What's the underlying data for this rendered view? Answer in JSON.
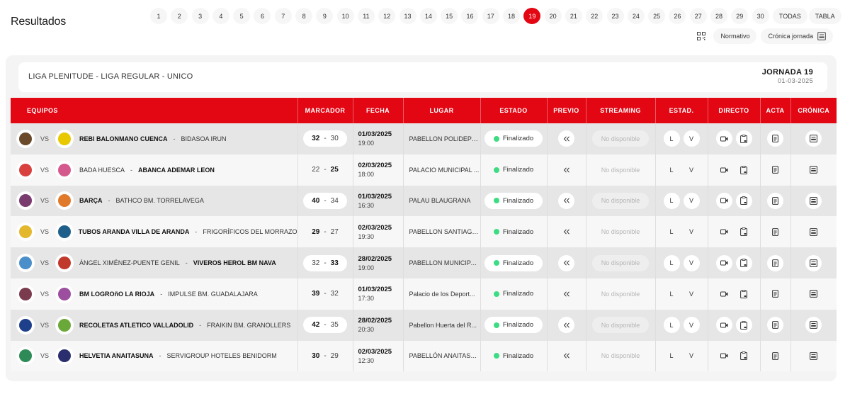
{
  "page": {
    "title": "Resultados"
  },
  "pagination": {
    "rounds": [
      "1",
      "2",
      "3",
      "4",
      "5",
      "6",
      "7",
      "8",
      "9",
      "10",
      "11",
      "12",
      "13",
      "14",
      "15",
      "16",
      "17",
      "18",
      "19",
      "20",
      "21",
      "22",
      "23",
      "24",
      "25",
      "26",
      "27",
      "28",
      "29",
      "30"
    ],
    "active": "19",
    "extra": [
      "TODAS",
      "TABLA"
    ]
  },
  "tools": {
    "qr_icon": "qr-code-icon",
    "normativo": "Normativo",
    "cronica_jornada": "Crónica jornada",
    "cronica_icon": "newspaper-icon"
  },
  "league": {
    "name": "LIGA PLENITUDE - LIGA REGULAR - UNICO",
    "jornada": "JORNADA 19",
    "date": "01-03-2025"
  },
  "table": {
    "headers": [
      "EQUIPOS",
      "MARCADOR",
      "FECHA",
      "LUGAR",
      "ESTADO",
      "PREVIO",
      "STREAMING",
      "ESTAD.",
      "DIRECTO",
      "ACTA",
      "CRÓNICA"
    ],
    "vs_label": "VS",
    "stat_buttons": [
      "L",
      "V"
    ],
    "streaming_label": "No disponible",
    "icons": {
      "previo": "double-chevron-left-icon",
      "directo_video": "video-camera-icon",
      "directo_board": "clipboard-icon",
      "acta": "document-icon",
      "cronica": "newspaper-icon"
    },
    "status_color": "#3ddc84",
    "rows": [
      {
        "home": "REBI BALONMANO CUENCA",
        "away": "BIDASOA IRUN",
        "home_score": "32",
        "away_score": "30",
        "winner": "home",
        "date": "01/03/2025",
        "time": "19:00",
        "venue": "PABELLON POLIDEPO...",
        "status": "Finalizado",
        "home_logo": "#6b4a2b",
        "away_logo": "#e8c800"
      },
      {
        "home": "BADA HUESCA",
        "away": "ABANCA ADEMAR LEON",
        "home_score": "22",
        "away_score": "25",
        "winner": "away",
        "date": "02/03/2025",
        "time": "18:00",
        "venue": "PALACIO MUNICIPAL ...",
        "status": "Finalizado",
        "home_logo": "#d9413f",
        "away_logo": "#d45a8e"
      },
      {
        "home": "BARÇA",
        "away": "BATHCO BM. TORRELAVEGA",
        "home_score": "40",
        "away_score": "34",
        "winner": "home",
        "date": "01/03/2025",
        "time": "16:30",
        "venue": "PALAU BLAUGRANA",
        "status": "Finalizado",
        "home_logo": "#7a3b6e",
        "away_logo": "#e07a2a"
      },
      {
        "home": "TUBOS ARANDA VILLA DE ARANDA",
        "away": "FRIGORÍFICOS DEL MORRAZO",
        "home_score": "29",
        "away_score": "27",
        "winner": "home",
        "date": "02/03/2025",
        "time": "19:30",
        "venue": "PABELLON SANTIAGO...",
        "status": "Finalizado",
        "home_logo": "#e3b82c",
        "away_logo": "#1f5f8a"
      },
      {
        "home": "ÁNGEL XIMÉNEZ-PUENTE GENIL",
        "away": "VIVEROS HEROL BM NAVA",
        "home_score": "32",
        "away_score": "33",
        "winner": "away",
        "date": "28/02/2025",
        "time": "19:00",
        "venue": "PABELLON MUNICIPA...",
        "status": "Finalizado",
        "home_logo": "#4a8fc9",
        "away_logo": "#c0392b"
      },
      {
        "home": "BM LOGROñO LA RIOJA",
        "away": "IMPULSE BM. GUADALAJARA",
        "home_score": "39",
        "away_score": "32",
        "winner": "home",
        "date": "01/03/2025",
        "time": "17:30",
        "venue": "Palacio de los Deport...",
        "status": "Finalizado",
        "home_logo": "#7a3b4e",
        "away_logo": "#9b4f9e"
      },
      {
        "home": "RECOLETAS ATLETICO VALLADOLID",
        "away": "FRAIKIN BM. GRANOLLERS",
        "home_score": "42",
        "away_score": "35",
        "winner": "home",
        "date": "28/02/2025",
        "time": "20:30",
        "venue": "Pabellon Huerta del R...",
        "status": "Finalizado",
        "home_logo": "#1e3f8a",
        "away_logo": "#6aa83a"
      },
      {
        "home": "HELVETIA ANAITASUNA",
        "away": "SERVIGROUP HOTELES BENIDORM",
        "home_score": "30",
        "away_score": "29",
        "winner": "home",
        "date": "02/03/2025",
        "time": "12:30",
        "venue": "PABELLÓN ANAITASU...",
        "status": "Finalizado",
        "home_logo": "#2e8b57",
        "away_logo": "#2a2e6e"
      }
    ]
  }
}
